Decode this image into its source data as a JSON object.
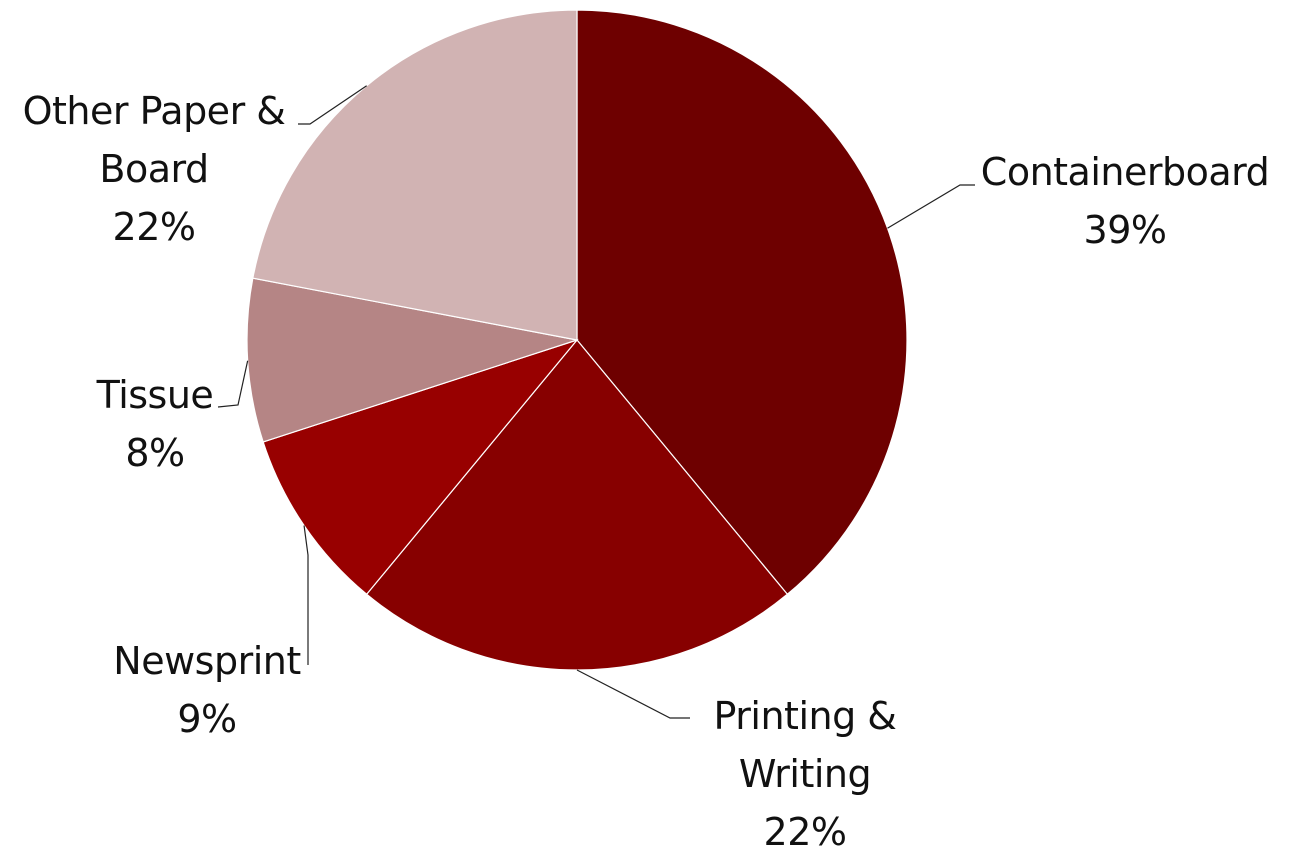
{
  "chart_data": {
    "type": "pie",
    "title": "",
    "categories": [
      "Containerboard",
      "Printing & Writing",
      "Newsprint",
      "Tissue",
      "Other Paper & Board"
    ],
    "values": [
      39,
      22,
      9,
      8,
      22
    ],
    "colors": [
      "#6e0000",
      "#870000",
      "#980000",
      "#b58585",
      "#d1b3b3"
    ],
    "start_angle_deg": 0,
    "direction": "clockwise",
    "legend": "none",
    "data_labels": [
      {
        "lines": [
          "Containerboard",
          "39%"
        ]
      },
      {
        "lines": [
          "Printing &",
          "Writing",
          "22%"
        ]
      },
      {
        "lines": [
          "Newsprint",
          "9%"
        ]
      },
      {
        "lines": [
          "Tissue",
          "8%"
        ]
      },
      {
        "lines": [
          "Other Paper &",
          "Board",
          "22%"
        ]
      }
    ]
  }
}
